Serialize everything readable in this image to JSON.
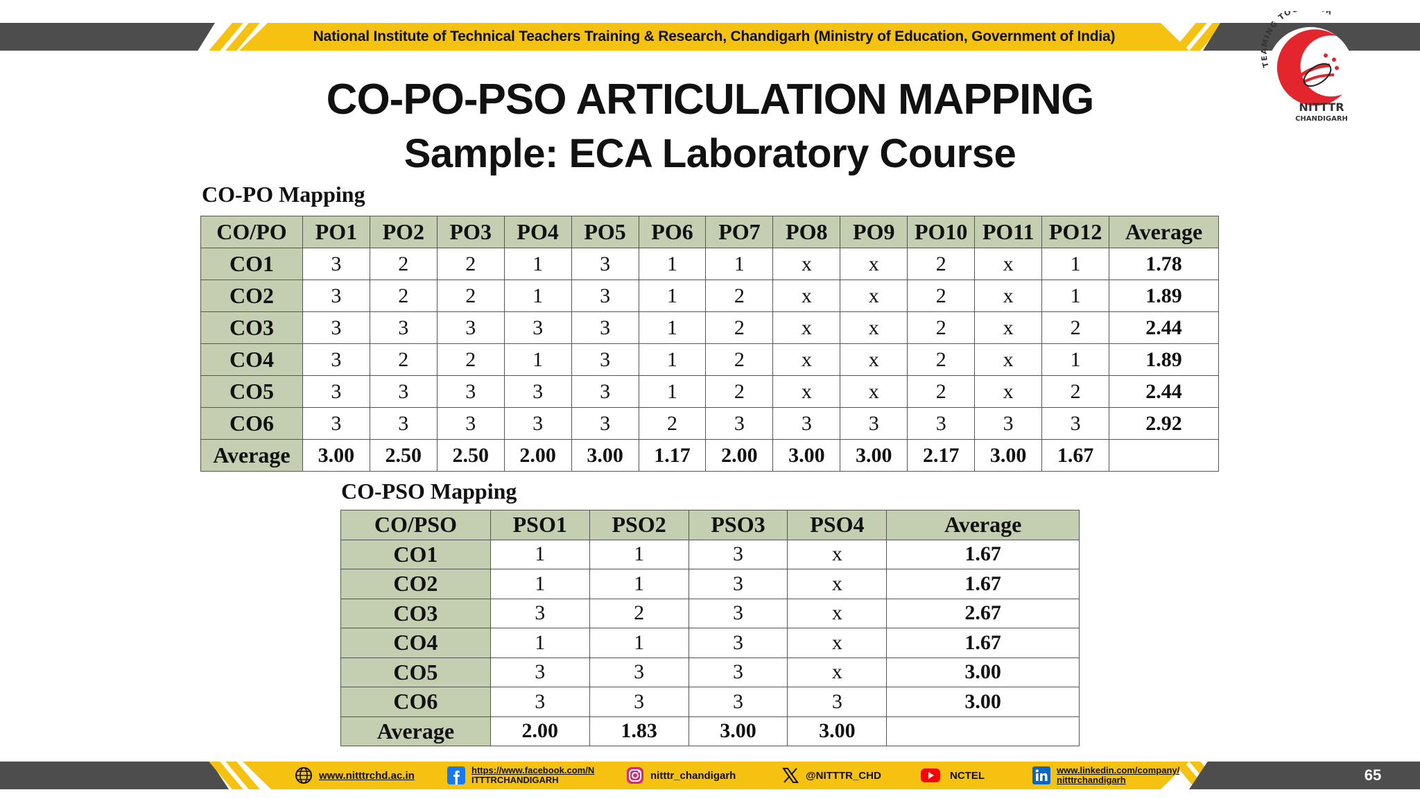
{
  "header": {
    "banner_text": "National Institute of Technical Teachers Training & Research, Chandigarh (Ministry of Education, Government of India)"
  },
  "logo": {
    "arc_text": "TEAMING TOGETHER",
    "name": "NITTTR",
    "city": "CHANDIGARH"
  },
  "slide": {
    "title": "CO-PO-PSO ARTICULATION MAPPING",
    "subtitle": "Sample: ECA Laboratory Course"
  },
  "po_mapping": {
    "label": "CO-PO Mapping",
    "headers": [
      "CO/PO",
      "PO1",
      "PO2",
      "PO3",
      "PO4",
      "PO5",
      "PO6",
      "PO7",
      "PO8",
      "PO9",
      "PO10",
      "PO11",
      "PO12",
      "Average"
    ],
    "rows": [
      [
        "CO1",
        "3",
        "2",
        "2",
        "1",
        "3",
        "1",
        "1",
        "x",
        "x",
        "2",
        "x",
        "1",
        "1.78"
      ],
      [
        "CO2",
        "3",
        "2",
        "2",
        "1",
        "3",
        "1",
        "2",
        "x",
        "x",
        "2",
        "x",
        "1",
        "1.89"
      ],
      [
        "CO3",
        "3",
        "3",
        "3",
        "3",
        "3",
        "1",
        "2",
        "x",
        "x",
        "2",
        "x",
        "2",
        "2.44"
      ],
      [
        "CO4",
        "3",
        "2",
        "2",
        "1",
        "3",
        "1",
        "2",
        "x",
        "x",
        "2",
        "x",
        "1",
        "1.89"
      ],
      [
        "CO5",
        "3",
        "3",
        "3",
        "3",
        "3",
        "1",
        "2",
        "x",
        "x",
        "2",
        "x",
        "2",
        "2.44"
      ],
      [
        "CO6",
        "3",
        "3",
        "3",
        "3",
        "3",
        "2",
        "3",
        "3",
        "3",
        "3",
        "3",
        "3",
        "2.92"
      ]
    ],
    "average_row": [
      "Average",
      "3.00",
      "2.50",
      "2.50",
      "2.00",
      "3.00",
      "1.17",
      "2.00",
      "3.00",
      "3.00",
      "2.17",
      "3.00",
      "1.67",
      ""
    ]
  },
  "pso_mapping": {
    "label": "CO-PSO Mapping",
    "headers": [
      "CO/PSO",
      "PSO1",
      "PSO2",
      "PSO3",
      "PSO4",
      "Average"
    ],
    "rows": [
      [
        "CO1",
        "1",
        "1",
        "3",
        "x",
        "1.67"
      ],
      [
        "CO2",
        "1",
        "1",
        "3",
        "x",
        "1.67"
      ],
      [
        "CO3",
        "3",
        "2",
        "3",
        "x",
        "2.67"
      ],
      [
        "CO4",
        "1",
        "1",
        "3",
        "x",
        "1.67"
      ],
      [
        "CO5",
        "3",
        "3",
        "3",
        "x",
        "3.00"
      ],
      [
        "CO6",
        "3",
        "3",
        "3",
        "3",
        "3.00"
      ]
    ],
    "average_row": [
      "Average",
      "2.00",
      "1.83",
      "3.00",
      "3.00",
      ""
    ]
  },
  "footer": {
    "website": "www.nitttrchd.ac.in",
    "facebook_line1": "https://www.facebook.com/N",
    "facebook_line2": "ITTTRCHANDIGARH",
    "instagram": "nitttr_chandigarh",
    "x_handle": "@NITTTR_CHD",
    "youtube": "NCTEL",
    "linkedin_line1": "www.linkedin.com/company/",
    "linkedin_line2": "nitttrchandigarh",
    "page_number": "65"
  },
  "colors": {
    "banner_yellow": "#f5c211",
    "banner_dark": "#4d4d4d",
    "table_header": "#c4cfb1",
    "logo_red": "#e3262d"
  }
}
